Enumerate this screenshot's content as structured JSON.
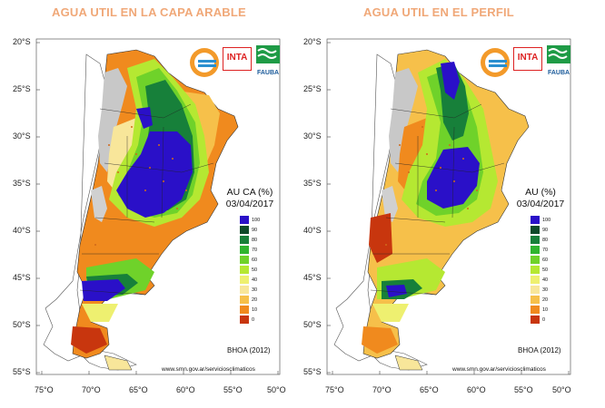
{
  "panels": [
    {
      "title": "AGUA UTIL EN LA CAPA ARABLE",
      "legend_title_line1": "AU CA (%)",
      "legend_date": "03/04/2017",
      "credit": "BHOA (2012)",
      "url": "www.smn.gov.ar/serviciosclimaticos"
    },
    {
      "title": "AGUA UTIL EN EL PERFIL",
      "legend_title_line1": "AU (%)",
      "legend_date": "03/04/2017",
      "credit": "BHOA (2012)",
      "url": "www.smn.gov.ar/serviciosclimaticos"
    }
  ],
  "lat_labels": [
    "20°S",
    "25°S",
    "30°S",
    "35°S",
    "40°S",
    "45°S",
    "50°S",
    "55°S"
  ],
  "lon_labels": [
    "75°O",
    "70°O",
    "65°O",
    "60°O",
    "55°O",
    "50°O"
  ],
  "legend": [
    {
      "label": "100",
      "color": "#2a10c8"
    },
    {
      "label": "90",
      "color": "#0e4a2a"
    },
    {
      "label": "80",
      "color": "#17803a"
    },
    {
      "label": "70",
      "color": "#2fb52f"
    },
    {
      "label": "60",
      "color": "#6fd22a"
    },
    {
      "label": "50",
      "color": "#b5e832"
    },
    {
      "label": "40",
      "color": "#eef070"
    },
    {
      "label": "30",
      "color": "#f8e69a"
    },
    {
      "label": "20",
      "color": "#f6c04a"
    },
    {
      "label": "10",
      "color": "#f08a1e"
    },
    {
      "label": "0",
      "color": "#c8360e"
    }
  ],
  "logos": {
    "left_logo": "smn-wave-logo",
    "middle_logo": "INTA",
    "right_logo": "FAUBA"
  }
}
